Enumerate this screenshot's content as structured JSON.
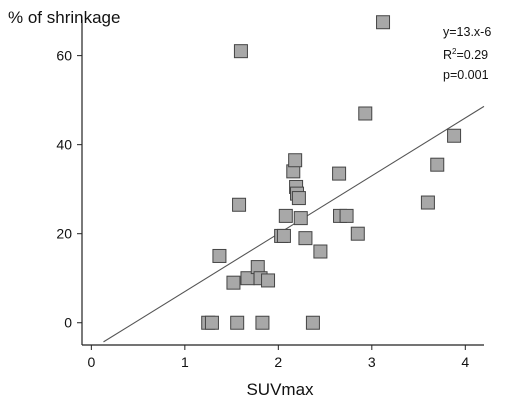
{
  "chart_data": {
    "type": "scatter",
    "ylabel": "% of shrinkage",
    "xlabel": "SUVmax",
    "xlim": [
      -0.1,
      4.2
    ],
    "ylim": [
      -5,
      68
    ],
    "xticks": [
      "0",
      "1",
      "2",
      "3",
      "4"
    ],
    "xtick_values": [
      0,
      1,
      2,
      3,
      4
    ],
    "yticks": [
      "0",
      "20",
      "40",
      "60"
    ],
    "ytick_values": [
      0,
      20,
      40,
      60
    ],
    "annotation": {
      "equation": "y=13.x-6",
      "r2_label": "R",
      "r2_sup": "2",
      "r2_value": "=0.29",
      "p": "p=0.001"
    },
    "fit_line": {
      "x": [
        0.13,
        4.2
      ],
      "y": [
        -4.3,
        48.6
      ]
    },
    "marker_color": "#a8a8a8",
    "points": [
      {
        "x": 1.25,
        "y": 0
      },
      {
        "x": 1.29,
        "y": 0
      },
      {
        "x": 1.56,
        "y": 0
      },
      {
        "x": 1.83,
        "y": 0
      },
      {
        "x": 2.37,
        "y": 0
      },
      {
        "x": 1.37,
        "y": 15
      },
      {
        "x": 1.52,
        "y": 9
      },
      {
        "x": 1.67,
        "y": 10
      },
      {
        "x": 1.78,
        "y": 12.5
      },
      {
        "x": 1.81,
        "y": 10
      },
      {
        "x": 1.89,
        "y": 9.5
      },
      {
        "x": 1.58,
        "y": 26.5
      },
      {
        "x": 1.6,
        "y": 61
      },
      {
        "x": 2.03,
        "y": 19.5
      },
      {
        "x": 2.06,
        "y": 19.5
      },
      {
        "x": 2.08,
        "y": 24
      },
      {
        "x": 2.16,
        "y": 34
      },
      {
        "x": 2.18,
        "y": 36.5
      },
      {
        "x": 2.19,
        "y": 30.5
      },
      {
        "x": 2.2,
        "y": 29
      },
      {
        "x": 2.22,
        "y": 28
      },
      {
        "x": 2.24,
        "y": 23.5
      },
      {
        "x": 2.29,
        "y": 19
      },
      {
        "x": 2.45,
        "y": 16
      },
      {
        "x": 2.65,
        "y": 33.5
      },
      {
        "x": 2.66,
        "y": 24
      },
      {
        "x": 2.73,
        "y": 24
      },
      {
        "x": 2.85,
        "y": 20
      },
      {
        "x": 2.93,
        "y": 47
      },
      {
        "x": 3.12,
        "y": 67.5
      },
      {
        "x": 3.6,
        "y": 27
      },
      {
        "x": 3.7,
        "y": 35.5
      },
      {
        "x": 3.88,
        "y": 42
      }
    ]
  }
}
